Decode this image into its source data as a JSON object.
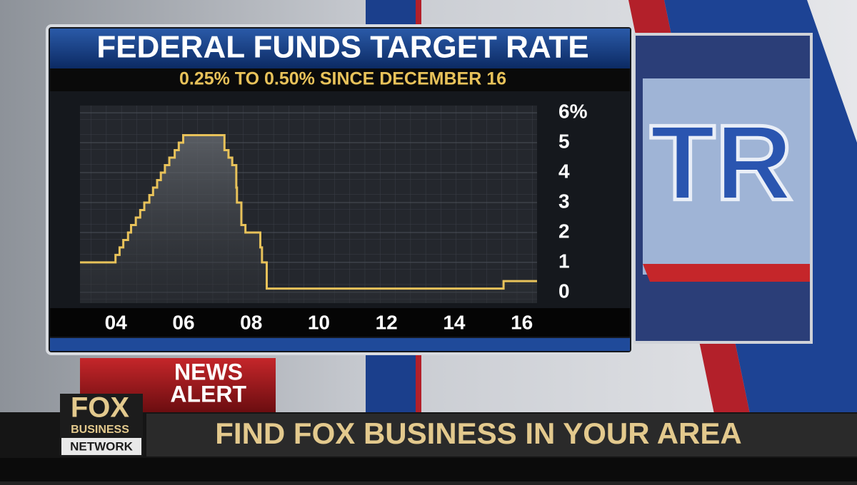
{
  "chart_data": {
    "type": "line",
    "title": "FEDERAL FUNDS TARGET RATE",
    "subtitle": "0.25% TO 0.50% SINCE DECEMBER 16",
    "step": "post",
    "grid": true,
    "series": [
      {
        "color": "#e8c25a",
        "x": [
          2003.44,
          2004.49,
          2004.61,
          2004.72,
          2004.86,
          2004.95,
          2005.09,
          2005.22,
          2005.34,
          2005.49,
          2005.6,
          2005.72,
          2005.83,
          2005.95,
          2006.08,
          2006.24,
          2006.36,
          2006.49,
          2007.71,
          2007.83,
          2007.94,
          2008.06,
          2008.08,
          2008.21,
          2008.33,
          2008.77,
          2008.82,
          2008.96,
          2015.96,
          2016.95
        ],
        "values": [
          1.0,
          1.25,
          1.5,
          1.75,
          2.0,
          2.25,
          2.5,
          2.75,
          3.0,
          3.25,
          3.5,
          3.75,
          4.0,
          4.25,
          4.5,
          4.75,
          5.0,
          5.25,
          4.75,
          4.5,
          4.25,
          3.5,
          3.0,
          2.25,
          2.0,
          1.5,
          1.0,
          0.125,
          0.375,
          0.375
        ]
      }
    ],
    "xlim": [
      2003.44,
      2016.95
    ],
    "xticks": [
      {
        "value": 2004.5,
        "label": "04"
      },
      {
        "value": 2006.5,
        "label": "06"
      },
      {
        "value": 2008.5,
        "label": "08"
      },
      {
        "value": 2010.5,
        "label": "10"
      },
      {
        "value": 2012.5,
        "label": "12"
      },
      {
        "value": 2014.5,
        "label": "14"
      },
      {
        "value": 2016.5,
        "label": "16"
      }
    ],
    "ylim": [
      -0.36,
      6.24
    ],
    "yticks": [
      0,
      1,
      2,
      3,
      4,
      5,
      {
        "value": 6,
        "label": "6%"
      }
    ]
  },
  "show_logo": "TR",
  "alert": [
    "NEWS",
    "ALERT"
  ],
  "network_logo": [
    "FOX",
    "BUSINESS",
    "NETWORK"
  ],
  "ticker": "FIND FOX BUSINESS IN YOUR AREA"
}
